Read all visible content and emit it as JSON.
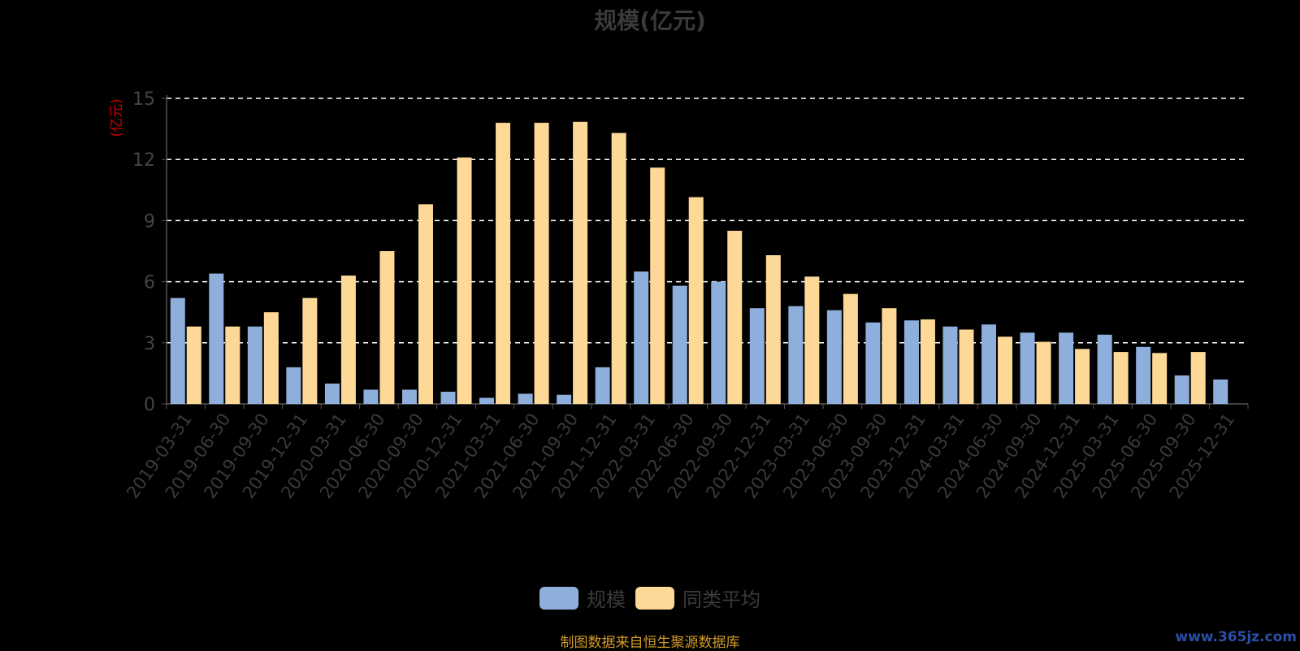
{
  "chart_data": {
    "type": "bar",
    "title": "规模(亿元)",
    "ylabel": "(亿元)",
    "ylim": [
      0,
      15
    ],
    "yticks": [
      "0",
      "3",
      "6",
      "9",
      "12",
      "15"
    ],
    "grid": true,
    "legend_position": "bottom",
    "categories": [
      "2019-03-31",
      "2019-06-30",
      "2019-09-30",
      "2019-12-31",
      "2020-03-31",
      "2020-06-30",
      "2020-09-30",
      "2020-12-31",
      "2021-03-31",
      "2021-06-30",
      "2021-09-30",
      "2021-12-31",
      "2022-03-31",
      "2022-06-30",
      "2022-09-30",
      "2022-12-31",
      "2023-03-31",
      "2023-06-30",
      "2023-09-30",
      "2023-12-31",
      "2024-03-31",
      "2024-06-30",
      "2024-09-30",
      "2024-12-31",
      "2025-03-31",
      "2025-06-30",
      "2025-09-30",
      "2025-12-31"
    ],
    "series": [
      {
        "name": "规模",
        "color": "#8eaedb",
        "values": [
          5.2,
          6.4,
          3.8,
          1.8,
          1.0,
          0.7,
          0.7,
          0.6,
          0.3,
          0.5,
          0.45,
          1.8,
          6.5,
          5.8,
          6.0,
          4.7,
          4.8,
          4.6,
          4.0,
          4.1,
          3.8,
          3.9,
          3.5,
          3.5,
          3.4,
          2.8,
          1.4,
          1.2
        ]
      },
      {
        "name": "同类平均",
        "color": "#fdd896",
        "values": [
          3.8,
          3.8,
          4.5,
          5.2,
          6.3,
          7.5,
          9.8,
          12.1,
          13.8,
          13.8,
          13.85,
          13.3,
          11.6,
          10.15,
          8.5,
          7.3,
          6.25,
          5.4,
          4.7,
          4.15,
          3.65,
          3.3,
          3.05,
          2.7,
          2.55,
          2.5,
          2.55,
          null
        ]
      }
    ]
  },
  "footer": {
    "source": "制图数据来自恒生聚源数据库",
    "watermark": "www.365jz.com"
  }
}
